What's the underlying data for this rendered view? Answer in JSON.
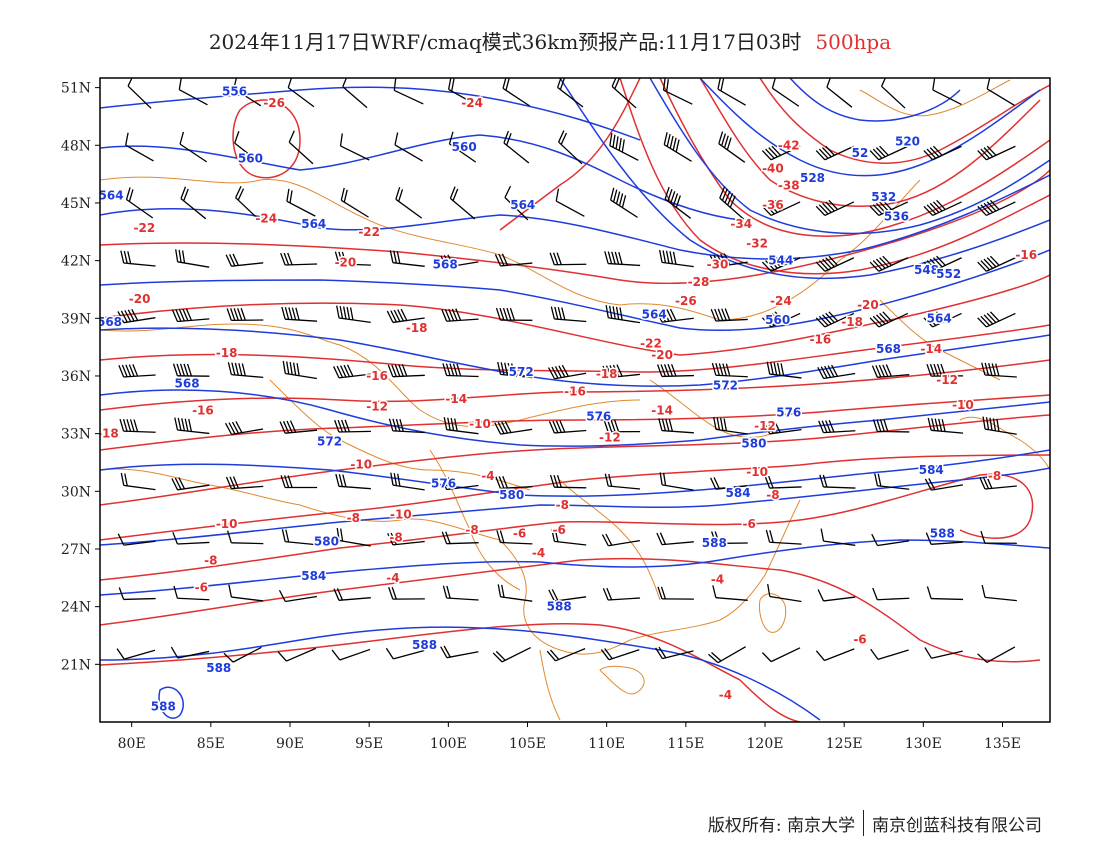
{
  "title": {
    "main": "2024年11月17日WRF/cmaq模式36km预报产品:11月17日03时",
    "level": "500hpa"
  },
  "footer": {
    "copyright": "版权所有: 南京大学",
    "company": "南京创蓝科技有限公司"
  },
  "colors": {
    "geopotential": "#1e3cdc",
    "temperature": "#e03030",
    "borders": "#e08a30",
    "wind": "#000000"
  },
  "axes": {
    "x_ticks": [
      "80E",
      "85E",
      "90E",
      "95E",
      "100E",
      "105E",
      "110E",
      "115E",
      "120E",
      "125E",
      "130E",
      "135E"
    ],
    "y_ticks": [
      "51N",
      "48N",
      "45N",
      "42N",
      "39N",
      "36N",
      "33N",
      "30N",
      "27N",
      "24N",
      "21N"
    ]
  },
  "chart_data": {
    "type": "map",
    "lon_range": [
      78,
      138
    ],
    "lat_range": [
      18,
      51.5
    ],
    "blue_labels": [
      {
        "lon": 86.5,
        "lat": 50.8,
        "text": "556"
      },
      {
        "lon": 87.5,
        "lat": 47.3,
        "text": "560"
      },
      {
        "lon": 101.0,
        "lat": 47.9,
        "text": "560"
      },
      {
        "lon": 78.7,
        "lat": 45.4,
        "text": "564"
      },
      {
        "lon": 91.5,
        "lat": 43.9,
        "text": "564"
      },
      {
        "lon": 104.7,
        "lat": 44.9,
        "text": "564"
      },
      {
        "lon": 99.8,
        "lat": 41.8,
        "text": "568"
      },
      {
        "lon": 78.6,
        "lat": 38.8,
        "text": "568"
      },
      {
        "lon": 83.5,
        "lat": 35.6,
        "text": "568"
      },
      {
        "lon": 104.6,
        "lat": 36.2,
        "text": "572"
      },
      {
        "lon": 92.5,
        "lat": 32.6,
        "text": "572"
      },
      {
        "lon": 117.5,
        "lat": 35.5,
        "text": "572"
      },
      {
        "lon": 109.5,
        "lat": 33.9,
        "text": "576"
      },
      {
        "lon": 121.5,
        "lat": 34.1,
        "text": "576"
      },
      {
        "lon": 99.7,
        "lat": 30.4,
        "text": "576"
      },
      {
        "lon": 104.0,
        "lat": 29.8,
        "text": "580"
      },
      {
        "lon": 92.3,
        "lat": 27.4,
        "text": "580"
      },
      {
        "lon": 119.3,
        "lat": 32.5,
        "text": "580"
      },
      {
        "lon": 118.3,
        "lat": 29.9,
        "text": "584"
      },
      {
        "lon": 91.5,
        "lat": 25.6,
        "text": "584"
      },
      {
        "lon": 130.5,
        "lat": 31.1,
        "text": "584"
      },
      {
        "lon": 116.8,
        "lat": 27.3,
        "text": "588"
      },
      {
        "lon": 107.0,
        "lat": 24.0,
        "text": "588"
      },
      {
        "lon": 98.5,
        "lat": 22.0,
        "text": "588"
      },
      {
        "lon": 85.5,
        "lat": 20.8,
        "text": "588"
      },
      {
        "lon": 82.0,
        "lat": 18.8,
        "text": "588"
      },
      {
        "lon": 131.2,
        "lat": 27.8,
        "text": "588"
      },
      {
        "lon": 113.0,
        "lat": 39.2,
        "text": "564"
      },
      {
        "lon": 120.8,
        "lat": 38.9,
        "text": "560"
      },
      {
        "lon": 131.0,
        "lat": 39.0,
        "text": "564"
      },
      {
        "lon": 127.8,
        "lat": 37.4,
        "text": "568"
      },
      {
        "lon": 121.0,
        "lat": 42.0,
        "text": "544"
      },
      {
        "lon": 128.3,
        "lat": 44.3,
        "text": "536"
      },
      {
        "lon": 127.5,
        "lat": 45.3,
        "text": "532"
      },
      {
        "lon": 123.0,
        "lat": 46.3,
        "text": "528"
      },
      {
        "lon": 126.0,
        "lat": 47.6,
        "text": "52"
      },
      {
        "lon": 129.0,
        "lat": 48.2,
        "text": "520"
      },
      {
        "lon": 130.2,
        "lat": 41.5,
        "text": "548"
      },
      {
        "lon": 131.6,
        "lat": 41.3,
        "text": "552"
      }
    ],
    "red_labels": [
      {
        "lon": 89.0,
        "lat": 50.2,
        "text": "-26"
      },
      {
        "lon": 101.5,
        "lat": 50.2,
        "text": "-24"
      },
      {
        "lon": 80.8,
        "lat": 43.7,
        "text": "-22"
      },
      {
        "lon": 95.0,
        "lat": 43.5,
        "text": "-22"
      },
      {
        "lon": 88.5,
        "lat": 44.2,
        "text": "-24"
      },
      {
        "lon": 80.5,
        "lat": 40.0,
        "text": "-20"
      },
      {
        "lon": 93.5,
        "lat": 41.9,
        "text": "-20"
      },
      {
        "lon": 86.0,
        "lat": 37.2,
        "text": "-18"
      },
      {
        "lon": 98.0,
        "lat": 38.5,
        "text": "-18"
      },
      {
        "lon": 95.5,
        "lat": 36.0,
        "text": "-16"
      },
      {
        "lon": 84.5,
        "lat": 34.2,
        "text": "-16"
      },
      {
        "lon": 95.5,
        "lat": 34.4,
        "text": "-12"
      },
      {
        "lon": 100.5,
        "lat": 34.8,
        "text": "-14"
      },
      {
        "lon": 78.5,
        "lat": 33.0,
        "text": "-18"
      },
      {
        "lon": 102.0,
        "lat": 33.5,
        "text": "-10"
      },
      {
        "lon": 94.5,
        "lat": 31.4,
        "text": "-10"
      },
      {
        "lon": 86.0,
        "lat": 28.3,
        "text": "-10"
      },
      {
        "lon": 97.0,
        "lat": 28.8,
        "text": "-10"
      },
      {
        "lon": 94.0,
        "lat": 28.6,
        "text": "-8"
      },
      {
        "lon": 85.0,
        "lat": 26.4,
        "text": "-8"
      },
      {
        "lon": 96.7,
        "lat": 27.6,
        "text": "-8"
      },
      {
        "lon": 101.5,
        "lat": 28.0,
        "text": "-8"
      },
      {
        "lon": 84.4,
        "lat": 25.0,
        "text": "-6"
      },
      {
        "lon": 96.5,
        "lat": 25.5,
        "text": "-4"
      },
      {
        "lon": 102.5,
        "lat": 30.8,
        "text": "-4"
      },
      {
        "lon": 105.7,
        "lat": 26.8,
        "text": "-4"
      },
      {
        "lon": 104.5,
        "lat": 27.8,
        "text": "-6"
      },
      {
        "lon": 107.2,
        "lat": 29.3,
        "text": "-8"
      },
      {
        "lon": 107.0,
        "lat": 28.0,
        "text": "-6"
      },
      {
        "lon": 113.5,
        "lat": 37.1,
        "text": "-20"
      },
      {
        "lon": 112.8,
        "lat": 37.7,
        "text": "-22"
      },
      {
        "lon": 110.0,
        "lat": 36.1,
        "text": "-18"
      },
      {
        "lon": 108.0,
        "lat": 35.2,
        "text": "-16"
      },
      {
        "lon": 113.5,
        "lat": 34.2,
        "text": "-14"
      },
      {
        "lon": 110.2,
        "lat": 32.8,
        "text": "-12"
      },
      {
        "lon": 120.0,
        "lat": 33.4,
        "text": "-12"
      },
      {
        "lon": 119.5,
        "lat": 31.0,
        "text": "-10"
      },
      {
        "lon": 120.5,
        "lat": 29.8,
        "text": "-8"
      },
      {
        "lon": 119.0,
        "lat": 28.3,
        "text": "-6"
      },
      {
        "lon": 117.0,
        "lat": 25.4,
        "text": "-4"
      },
      {
        "lon": 117.5,
        "lat": 19.4,
        "text": "-4"
      },
      {
        "lon": 126.0,
        "lat": 22.3,
        "text": "-6"
      },
      {
        "lon": 121.5,
        "lat": 48.0,
        "text": "-42"
      },
      {
        "lon": 120.5,
        "lat": 46.8,
        "text": "-40"
      },
      {
        "lon": 121.5,
        "lat": 45.9,
        "text": "-38"
      },
      {
        "lon": 120.5,
        "lat": 44.9,
        "text": "-36"
      },
      {
        "lon": 118.5,
        "lat": 43.9,
        "text": "-34"
      },
      {
        "lon": 119.5,
        "lat": 42.9,
        "text": "-32"
      },
      {
        "lon": 117.0,
        "lat": 41.8,
        "text": "-30"
      },
      {
        "lon": 115.8,
        "lat": 40.9,
        "text": "-28"
      },
      {
        "lon": 115.0,
        "lat": 39.9,
        "text": "-26"
      },
      {
        "lon": 121.0,
        "lat": 39.9,
        "text": "-24"
      },
      {
        "lon": 126.5,
        "lat": 39.7,
        "text": "-20"
      },
      {
        "lon": 125.5,
        "lat": 38.8,
        "text": "-18"
      },
      {
        "lon": 123.5,
        "lat": 37.9,
        "text": "-16"
      },
      {
        "lon": 130.5,
        "lat": 37.4,
        "text": "-14"
      },
      {
        "lon": 131.5,
        "lat": 35.8,
        "text": "-12"
      },
      {
        "lon": 132.5,
        "lat": 34.5,
        "text": "-10"
      },
      {
        "lon": 134.5,
        "lat": 30.8,
        "text": "-8"
      },
      {
        "lon": 136.5,
        "lat": 42.3,
        "text": "-16"
      }
    ]
  }
}
